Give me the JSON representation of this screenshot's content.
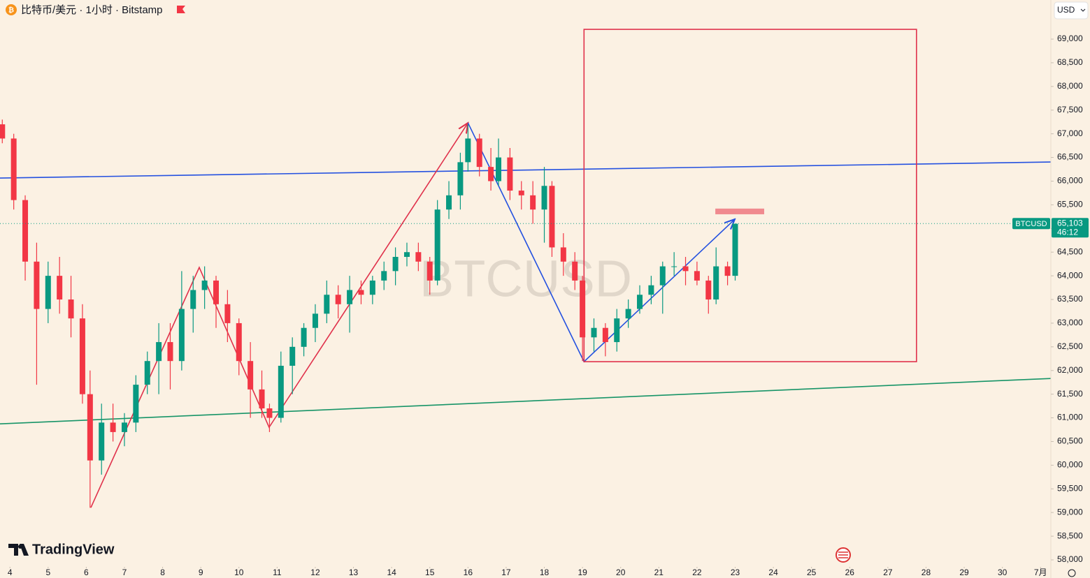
{
  "header": {
    "title": "比特币/美元 · 1小时 · Bitstamp",
    "currency": "USD"
  },
  "logo": "TradingView",
  "chart_data": {
    "type": "candlestick",
    "symbol": "BTCUSD",
    "up_color": "#089981",
    "down_color": "#f23645",
    "x": [
      3.8,
      4.1,
      4.4,
      4.7,
      5.0,
      5.3,
      5.6,
      5.9,
      6.1,
      6.4,
      6.7,
      7.0,
      7.3,
      7.6,
      7.9,
      8.2,
      8.5,
      8.8,
      9.1,
      9.4,
      9.7,
      10.0,
      10.3,
      10.6,
      10.8,
      11.1,
      11.4,
      11.7,
      12.0,
      12.3,
      12.6,
      12.9,
      13.2,
      13.5,
      13.8,
      14.1,
      14.4,
      14.7,
      15.0,
      15.2,
      15.5,
      15.8,
      16.0,
      16.3,
      16.6,
      16.8,
      17.1,
      17.4,
      17.7,
      18.0,
      18.2,
      18.5,
      18.8,
      19.0,
      19.3,
      19.6,
      19.9,
      20.2,
      20.5,
      20.8,
      21.1,
      21.4,
      21.7,
      22.0,
      22.3,
      22.5,
      22.8,
      23.0
    ],
    "open": [
      67200,
      66900,
      65600,
      64300,
      63300,
      64000,
      63500,
      63100,
      61500,
      60100,
      60900,
      60700,
      60900,
      61700,
      62200,
      62600,
      62200,
      63300,
      63700,
      63900,
      63400,
      63000,
      62200,
      61600,
      61200,
      61000,
      62100,
      62500,
      62900,
      63200,
      63600,
      63400,
      63700,
      63600,
      63900,
      64100,
      64400,
      64500,
      64300,
      63900,
      65400,
      65700,
      66400,
      66900,
      66300,
      66000,
      66500,
      65800,
      65700,
      65400,
      65900,
      64600,
      64300,
      63900,
      62700,
      62900,
      62600,
      63100,
      63300,
      63600,
      63800,
      64200,
      64200,
      64100,
      63900,
      63500,
      64200,
      64000
    ],
    "high": [
      67300,
      67000,
      65700,
      64700,
      64300,
      64400,
      64000,
      63400,
      62000,
      61300,
      61300,
      61100,
      61900,
      62400,
      63000,
      63000,
      64100,
      64000,
      64200,
      64000,
      63700,
      63100,
      62600,
      62000,
      61300,
      62400,
      62700,
      63000,
      63400,
      63900,
      63800,
      64000,
      63900,
      64000,
      64300,
      64600,
      64700,
      64700,
      64400,
      65600,
      66000,
      66600,
      67200,
      67000,
      66700,
      66900,
      66700,
      66000,
      66000,
      66300,
      66000,
      64900,
      64500,
      64000,
      63100,
      63000,
      63300,
      63500,
      63800,
      64000,
      64300,
      64500,
      64400,
      64300,
      64000,
      64600,
      64300,
      65100
    ],
    "low": [
      66800,
      65400,
      63900,
      61700,
      63000,
      63200,
      62700,
      61300,
      59100,
      59800,
      60500,
      60400,
      60700,
      61500,
      61500,
      61600,
      62000,
      62800,
      63300,
      62900,
      62600,
      61900,
      61000,
      61000,
      60700,
      60900,
      61500,
      62300,
      62600,
      63000,
      63100,
      62800,
      63400,
      63400,
      63700,
      63800,
      64200,
      64100,
      63600,
      63800,
      65200,
      65400,
      66200,
      66100,
      65800,
      65900,
      65600,
      65400,
      65100,
      64700,
      64400,
      64000,
      63700,
      62200,
      62400,
      62300,
      62400,
      62900,
      63200,
      63400,
      63200,
      64000,
      63800,
      63800,
      63200,
      63400,
      63800,
      63900
    ],
    "close": [
      66900,
      65600,
      64300,
      63300,
      64000,
      63500,
      63100,
      61500,
      60100,
      60900,
      60700,
      60900,
      61700,
      62200,
      62600,
      62200,
      63300,
      63700,
      63900,
      63400,
      63000,
      62200,
      61600,
      61200,
      61000,
      62100,
      62500,
      62900,
      63200,
      63600,
      63400,
      63700,
      63600,
      63900,
      64100,
      64400,
      64500,
      64300,
      63900,
      65400,
      65700,
      66400,
      66900,
      66300,
      66000,
      66500,
      65800,
      65700,
      65400,
      65900,
      64600,
      64300,
      63900,
      62700,
      62900,
      62600,
      63100,
      63300,
      63600,
      63800,
      64200,
      64200,
      64100,
      63900,
      63500,
      64200,
      64000,
      65100
    ],
    "xlim": [
      3.74,
      31.27
    ],
    "xticks": [
      4,
      5,
      6,
      7,
      8,
      9,
      10,
      11,
      12,
      13,
      14,
      15,
      16,
      17,
      18,
      19,
      20,
      21,
      22,
      23,
      24,
      25,
      26,
      27,
      28,
      29,
      30,
      {
        "value": 31,
        "label": "7月"
      }
    ],
    "ylim": [
      57617,
      69826
    ],
    "yticks": [
      {
        "value": 58000,
        "label": "58,000"
      },
      {
        "value": 58500,
        "label": "58,500"
      },
      {
        "value": 59000,
        "label": "59,000"
      },
      {
        "value": 59500,
        "label": "59,500"
      },
      {
        "value": 60000,
        "label": "60,000"
      },
      {
        "value": 60500,
        "label": "60,500"
      },
      {
        "value": 61000,
        "label": "61,000"
      },
      {
        "value": 61500,
        "label": "61,500"
      },
      {
        "value": 62000,
        "label": "62,000"
      },
      {
        "value": 62500,
        "label": "62,500"
      },
      {
        "value": 63000,
        "label": "63,000"
      },
      {
        "value": 63500,
        "label": "63,500"
      },
      {
        "value": 64000,
        "label": "64,000"
      },
      {
        "value": 64500,
        "label": "64,500"
      },
      {
        "value": 65000,
        "label": "65,000"
      },
      {
        "value": 65500,
        "label": "65,500"
      },
      {
        "value": 66000,
        "label": "66,000"
      },
      {
        "value": 66500,
        "label": "66,500"
      },
      {
        "value": 67000,
        "label": "67,000"
      },
      {
        "value": 67500,
        "label": "67,500"
      },
      {
        "value": 68000,
        "label": "68,000"
      },
      {
        "value": 68500,
        "label": "68,500"
      },
      {
        "value": 69000,
        "label": "69,000"
      }
    ],
    "last_price": {
      "value": 65103,
      "label": "65,103"
    },
    "countdown": "46:12",
    "drawings": [
      {
        "type": "line",
        "color": "#2451e0",
        "x": [
          3.74,
          31.27
        ],
        "y": [
          66065,
          66404
        ]
      },
      {
        "type": "line",
        "color": "#169467",
        "x": [
          3.74,
          31.27
        ],
        "y": [
          60873,
          61832
        ]
      },
      {
        "type": "arrow",
        "color": "#e0314b",
        "x": [
          6.12,
          8.96,
          10.79,
          16.0
        ],
        "y": [
          59103,
          64177,
          60800,
          67230
        ]
      },
      {
        "type": "arrow",
        "color": "#2451e0",
        "x": [
          16.0,
          19.04,
          22.99
        ],
        "y": [
          67230,
          62186,
          65195
        ]
      },
      {
        "type": "rectangle",
        "color": "#e0314b",
        "x": [
          19.04,
          27.75
        ],
        "y": [
          62186,
          69206
        ]
      },
      {
        "type": "band",
        "color": "#f08a8f",
        "x": [
          22.48,
          23.76
        ],
        "y": [
          65300,
          65420
        ]
      }
    ]
  }
}
